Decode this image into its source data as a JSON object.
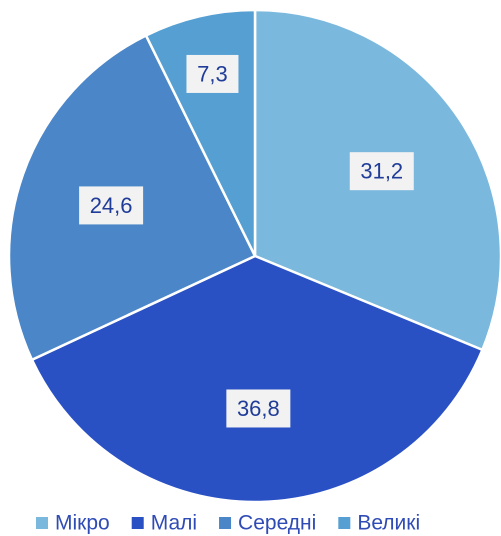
{
  "chart_data": {
    "type": "pie",
    "categories": [
      "Мікро",
      "Малі",
      "Середні",
      "Великі"
    ],
    "values": [
      31.2,
      36.8,
      24.6,
      7.3
    ],
    "labels": [
      "31,2",
      "36,8",
      "24,6",
      "7,3"
    ],
    "colors": [
      "#7ab8de",
      "#2a51c4",
      "#4a86c8",
      "#559fd2"
    ],
    "legend_position": "bottom",
    "start_angle": "top, clockwise"
  }
}
